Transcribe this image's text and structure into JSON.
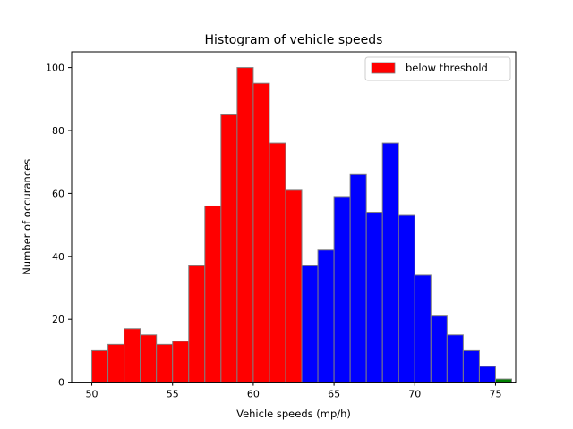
{
  "chart_data": {
    "type": "bar",
    "title": "Histogram of vehicle speeds",
    "xlabel": "Vehicle speeds (mp/h)",
    "ylabel": "Number of occurances",
    "xlim": [
      48.75,
      76.25
    ],
    "ylim": [
      0,
      105
    ],
    "xticks": [
      50,
      55,
      60,
      65,
      70,
      75
    ],
    "yticks": [
      0,
      20,
      40,
      60,
      80,
      100
    ],
    "bin_width": 1,
    "bins": [
      {
        "x0": 50.0,
        "value": 10,
        "color": "#ff0000"
      },
      {
        "x0": 51.0,
        "value": 12,
        "color": "#ff0000"
      },
      {
        "x0": 52.0,
        "value": 17,
        "color": "#ff0000"
      },
      {
        "x0": 53.0,
        "value": 15,
        "color": "#ff0000"
      },
      {
        "x0": 54.0,
        "value": 12,
        "color": "#ff0000"
      },
      {
        "x0": 55.0,
        "value": 13,
        "color": "#ff0000"
      },
      {
        "x0": 56.0,
        "value": 37,
        "color": "#ff0000"
      },
      {
        "x0": 57.0,
        "value": 56,
        "color": "#ff0000"
      },
      {
        "x0": 58.0,
        "value": 85,
        "color": "#ff0000"
      },
      {
        "x0": 59.0,
        "value": 100,
        "color": "#ff0000"
      },
      {
        "x0": 60.0,
        "value": 95,
        "color": "#ff0000"
      },
      {
        "x0": 61.0,
        "value": 76,
        "color": "#ff0000"
      },
      {
        "x0": 62.0,
        "value": 61,
        "color": "#ff0000"
      },
      {
        "x0": 63.0,
        "value": 37,
        "color": "#0000ff"
      },
      {
        "x0": 64.0,
        "value": 42,
        "color": "#0000ff"
      },
      {
        "x0": 65.0,
        "value": 59,
        "color": "#0000ff"
      },
      {
        "x0": 66.0,
        "value": 66,
        "color": "#0000ff"
      },
      {
        "x0": 67.0,
        "value": 54,
        "color": "#0000ff"
      },
      {
        "x0": 68.0,
        "value": 76,
        "color": "#0000ff"
      },
      {
        "x0": 69.0,
        "value": 53,
        "color": "#0000ff"
      },
      {
        "x0": 70.0,
        "value": 34,
        "color": "#0000ff"
      },
      {
        "x0": 71.0,
        "value": 21,
        "color": "#0000ff"
      },
      {
        "x0": 72.0,
        "value": 15,
        "color": "#0000ff"
      },
      {
        "x0": 73.0,
        "value": 10,
        "color": "#0000ff"
      },
      {
        "x0": 74.0,
        "value": 5,
        "color": "#0000ff"
      },
      {
        "x0": 75.0,
        "value": 1,
        "color": "#008000"
      }
    ],
    "legend": {
      "placement": "top-right",
      "entries": [
        {
          "label": "below threshold",
          "color": "#ff0000"
        }
      ]
    },
    "bar_edge_color": "#808080",
    "grid": false
  }
}
